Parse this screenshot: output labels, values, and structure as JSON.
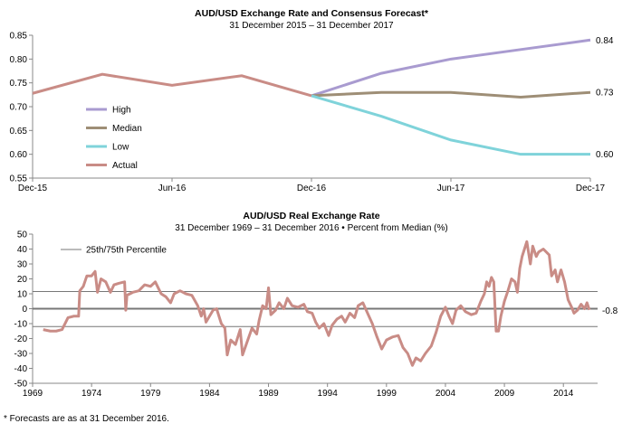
{
  "chart_data": [
    {
      "type": "line",
      "title": "AUD/USD  Exchange Rate and Consensus Forecast*",
      "subtitle": "31 December 2015 – 31 December 2017",
      "categories": [
        "Dec-15",
        "Mar-16",
        "Jun-16",
        "Sep-16",
        "Dec-16",
        "Mar-17",
        "Jun-17",
        "Sep-17",
        "Dec-17"
      ],
      "x_tick_labels": [
        "Dec-15",
        "Jun-16",
        "Dec-16",
        "Jun-17",
        "Dec-17"
      ],
      "ylim": [
        0.55,
        0.85
      ],
      "y_ticks": [
        "0.55",
        "0.60",
        "0.65",
        "0.70",
        "0.75",
        "0.80",
        "0.85"
      ],
      "grid": false,
      "legend_position": "left",
      "series": [
        {
          "name": "High",
          "color": "#a99bd0",
          "values": [
            null,
            null,
            null,
            null,
            0.723,
            0.77,
            0.8,
            0.82,
            0.84
          ]
        },
        {
          "name": "Median",
          "color": "#9e8e76",
          "values": [
            null,
            null,
            null,
            null,
            0.723,
            0.73,
            0.73,
            0.72,
            0.73
          ]
        },
        {
          "name": "Low",
          "color": "#7fd3da",
          "values": [
            null,
            null,
            null,
            null,
            0.723,
            0.68,
            0.63,
            0.6,
            0.6
          ]
        },
        {
          "name": "Actual",
          "color": "#c98c86",
          "values": [
            0.728,
            0.768,
            0.745,
            0.765,
            0.723,
            null,
            null,
            null,
            null
          ]
        }
      ],
      "end_labels": [
        "0.84",
        "0.73",
        "0.60"
      ]
    },
    {
      "type": "line",
      "title": "AUD/USD  Real Exchange Rate",
      "subtitle": "31 December 1969 – 31 December 2016 • Percent from Median  (%)",
      "ylim": [
        -50,
        50
      ],
      "xlim": [
        1969,
        2016.9
      ],
      "y_ticks": [
        "-50",
        "-40",
        "-30",
        "-20",
        "-10",
        "0",
        "10",
        "20",
        "30",
        "40",
        "50"
      ],
      "x_ticks": [
        "1969",
        "1974",
        "1979",
        "1984",
        "1989",
        "1994",
        "1999",
        "2004",
        "2009",
        "2014"
      ],
      "percentile_lines": [
        11.5,
        -12
      ],
      "percentile_legend": "25th/75th Percentile",
      "end_label": "-0.8",
      "color": "#c98c86",
      "points": [
        [
          1969.9,
          -14
        ],
        [
          1970.5,
          -15
        ],
        [
          1971.0,
          -15
        ],
        [
          1971.5,
          -14
        ],
        [
          1972.0,
          -6
        ],
        [
          1972.5,
          -5
        ],
        [
          1972.9,
          -5
        ],
        [
          1973.0,
          12
        ],
        [
          1973.3,
          15
        ],
        [
          1973.6,
          22
        ],
        [
          1974.0,
          22
        ],
        [
          1974.3,
          25
        ],
        [
          1974.5,
          11
        ],
        [
          1974.8,
          20
        ],
        [
          1975.2,
          18
        ],
        [
          1975.6,
          11
        ],
        [
          1975.9,
          16
        ],
        [
          1976.3,
          17
        ],
        [
          1976.8,
          18
        ],
        [
          1976.9,
          -1
        ],
        [
          1977.0,
          9
        ],
        [
          1977.5,
          11
        ],
        [
          1978.0,
          12
        ],
        [
          1978.5,
          16
        ],
        [
          1979.0,
          15
        ],
        [
          1979.4,
          18
        ],
        [
          1979.9,
          10
        ],
        [
          1980.3,
          8
        ],
        [
          1980.7,
          4
        ],
        [
          1981.0,
          10
        ],
        [
          1981.5,
          12
        ],
        [
          1982.0,
          10
        ],
        [
          1982.5,
          9
        ],
        [
          1983.0,
          2
        ],
        [
          1983.3,
          -5
        ],
        [
          1983.5,
          0
        ],
        [
          1983.7,
          -9
        ],
        [
          1984.0,
          -5
        ],
        [
          1984.3,
          -1
        ],
        [
          1984.6,
          0
        ],
        [
          1985.0,
          -10
        ],
        [
          1985.3,
          -13
        ],
        [
          1985.5,
          -31
        ],
        [
          1985.8,
          -21
        ],
        [
          1986.2,
          -24
        ],
        [
          1986.6,
          -14
        ],
        [
          1986.8,
          -31
        ],
        [
          1987.2,
          -22
        ],
        [
          1987.6,
          -13
        ],
        [
          1988.0,
          -17
        ],
        [
          1988.2,
          -8
        ],
        [
          1988.5,
          2
        ],
        [
          1988.8,
          0
        ],
        [
          1989.0,
          14
        ],
        [
          1989.2,
          -4
        ],
        [
          1989.6,
          -1
        ],
        [
          1989.9,
          4
        ],
        [
          1990.3,
          0
        ],
        [
          1990.6,
          7
        ],
        [
          1991.0,
          2
        ],
        [
          1991.5,
          1
        ],
        [
          1992.0,
          3
        ],
        [
          1992.3,
          -2
        ],
        [
          1992.7,
          -3
        ],
        [
          1993.0,
          -9
        ],
        [
          1993.3,
          -13
        ],
        [
          1993.7,
          -10
        ],
        [
          1994.1,
          -18
        ],
        [
          1994.4,
          -11
        ],
        [
          1994.8,
          -7
        ],
        [
          1995.2,
          -5
        ],
        [
          1995.5,
          -9
        ],
        [
          1995.9,
          -3
        ],
        [
          1996.3,
          -6
        ],
        [
          1996.6,
          2
        ],
        [
          1997.0,
          4
        ],
        [
          1997.4,
          -3
        ],
        [
          1997.8,
          -10
        ],
        [
          1998.2,
          -19
        ],
        [
          1998.6,
          -27
        ],
        [
          1999.0,
          -21
        ],
        [
          1999.5,
          -19
        ],
        [
          2000.0,
          -18
        ],
        [
          2000.4,
          -26
        ],
        [
          2000.8,
          -30
        ],
        [
          2001.2,
          -38
        ],
        [
          2001.5,
          -33
        ],
        [
          2001.9,
          -35
        ],
        [
          2002.3,
          -30
        ],
        [
          2002.8,
          -25
        ],
        [
          2003.2,
          -16
        ],
        [
          2003.6,
          -5
        ],
        [
          2004.0,
          1
        ],
        [
          2004.3,
          -5
        ],
        [
          2004.6,
          -10
        ],
        [
          2004.9,
          -1
        ],
        [
          2005.3,
          2
        ],
        [
          2005.7,
          -2
        ],
        [
          2006.2,
          -4
        ],
        [
          2006.6,
          -3
        ],
        [
          2007.0,
          5
        ],
        [
          2007.3,
          10
        ],
        [
          2007.5,
          18
        ],
        [
          2007.7,
          15
        ],
        [
          2007.9,
          21
        ],
        [
          2008.1,
          18
        ],
        [
          2008.3,
          -15
        ],
        [
          2008.5,
          -15
        ],
        [
          2008.7,
          -5
        ],
        [
          2009.0,
          5
        ],
        [
          2009.3,
          12
        ],
        [
          2009.6,
          20
        ],
        [
          2009.9,
          18
        ],
        [
          2010.1,
          11
        ],
        [
          2010.3,
          27
        ],
        [
          2010.5,
          35
        ],
        [
          2010.7,
          40
        ],
        [
          2010.9,
          45
        ],
        [
          2011.2,
          30
        ],
        [
          2011.4,
          42
        ],
        [
          2011.7,
          35
        ],
        [
          2011.9,
          38
        ],
        [
          2012.3,
          40
        ],
        [
          2012.8,
          36
        ],
        [
          2013.0,
          22
        ],
        [
          2013.3,
          26
        ],
        [
          2013.5,
          18
        ],
        [
          2013.8,
          26
        ],
        [
          2014.1,
          18
        ],
        [
          2014.4,
          6
        ],
        [
          2014.7,
          1
        ],
        [
          2014.9,
          -3
        ],
        [
          2015.2,
          -1
        ],
        [
          2015.5,
          3
        ],
        [
          2015.8,
          0
        ],
        [
          2016.0,
          4
        ],
        [
          2016.2,
          -0.8
        ]
      ]
    }
  ],
  "footnote": "* Forecasts are as at 31 December 2016."
}
